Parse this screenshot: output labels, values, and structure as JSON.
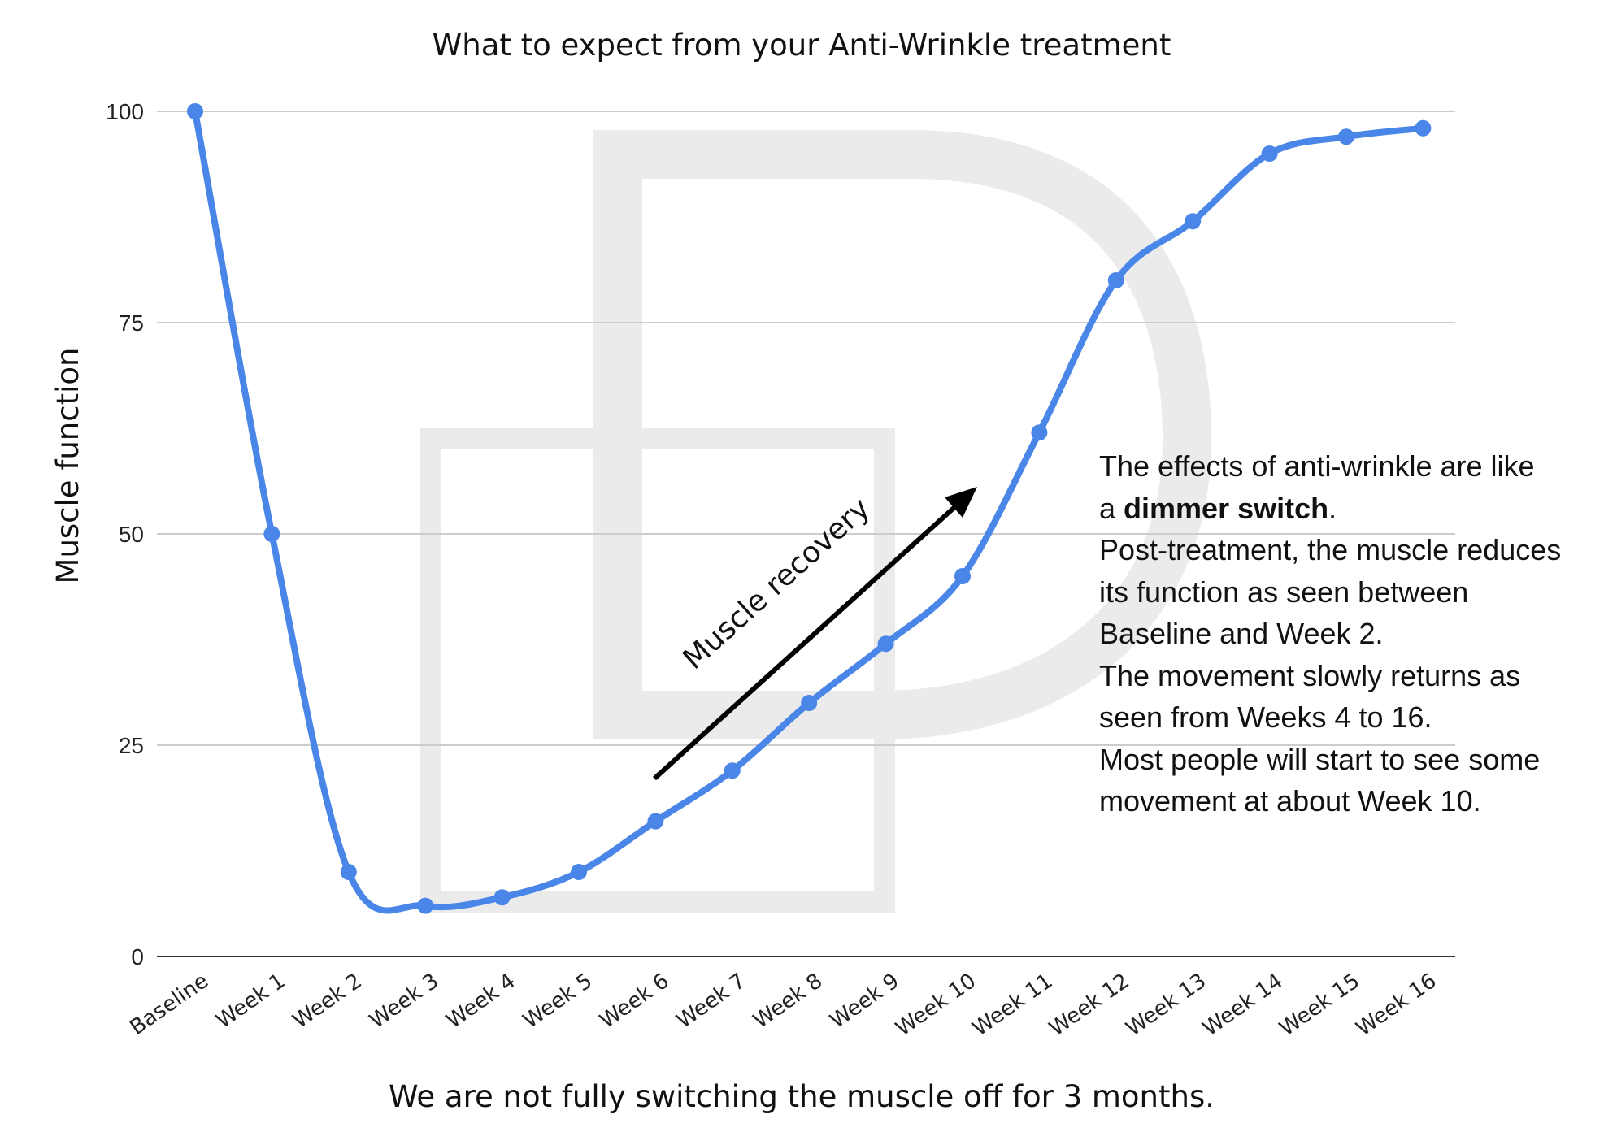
{
  "chart_data": {
    "type": "line",
    "title": "What to expect from your Anti-Wrinkle treatment",
    "xlabel": "We are not fully switching the muscle off for 3 months.",
    "ylabel": "Muscle function",
    "categories": [
      "Baseline",
      "Week 1",
      "Week 2",
      "Week 3",
      "Week 4",
      "Week 5",
      "Week 6",
      "Week 7",
      "Week 8",
      "Week 9",
      "Week 10",
      "Week 11",
      "Week 12",
      "Week 13",
      "Week 14",
      "Week 15",
      "Week 16"
    ],
    "series": [
      {
        "values": [
          100,
          50,
          10,
          6,
          7,
          10,
          16,
          22,
          30,
          37,
          45,
          62,
          80,
          87,
          95,
          97,
          98
        ],
        "color": "#4a86e8"
      }
    ],
    "ylim": [
      0,
      100
    ],
    "yticks": [
      0,
      25,
      50,
      75,
      100
    ],
    "grid": true,
    "smooth": true,
    "arrow_label": "Muscle recovery",
    "annotation": {
      "line1": "The effects of anti-wrinkle are like",
      "line2_prefix": "a ",
      "line2_bold": "dimmer switch",
      "line2_suffix": ".",
      "para2": "Post-treatment, the muscle reduces its function as seen between Baseline and Week 2.",
      "para3": "The movement slowly returns as seen from Weeks 4 to 16.",
      "para4": "Most people will start to see some movement at about Week 10."
    },
    "colors": {
      "line": "#4a86e8",
      "grid": "#cccccc",
      "axis": "#333333",
      "watermark": "#ebebeb"
    }
  }
}
